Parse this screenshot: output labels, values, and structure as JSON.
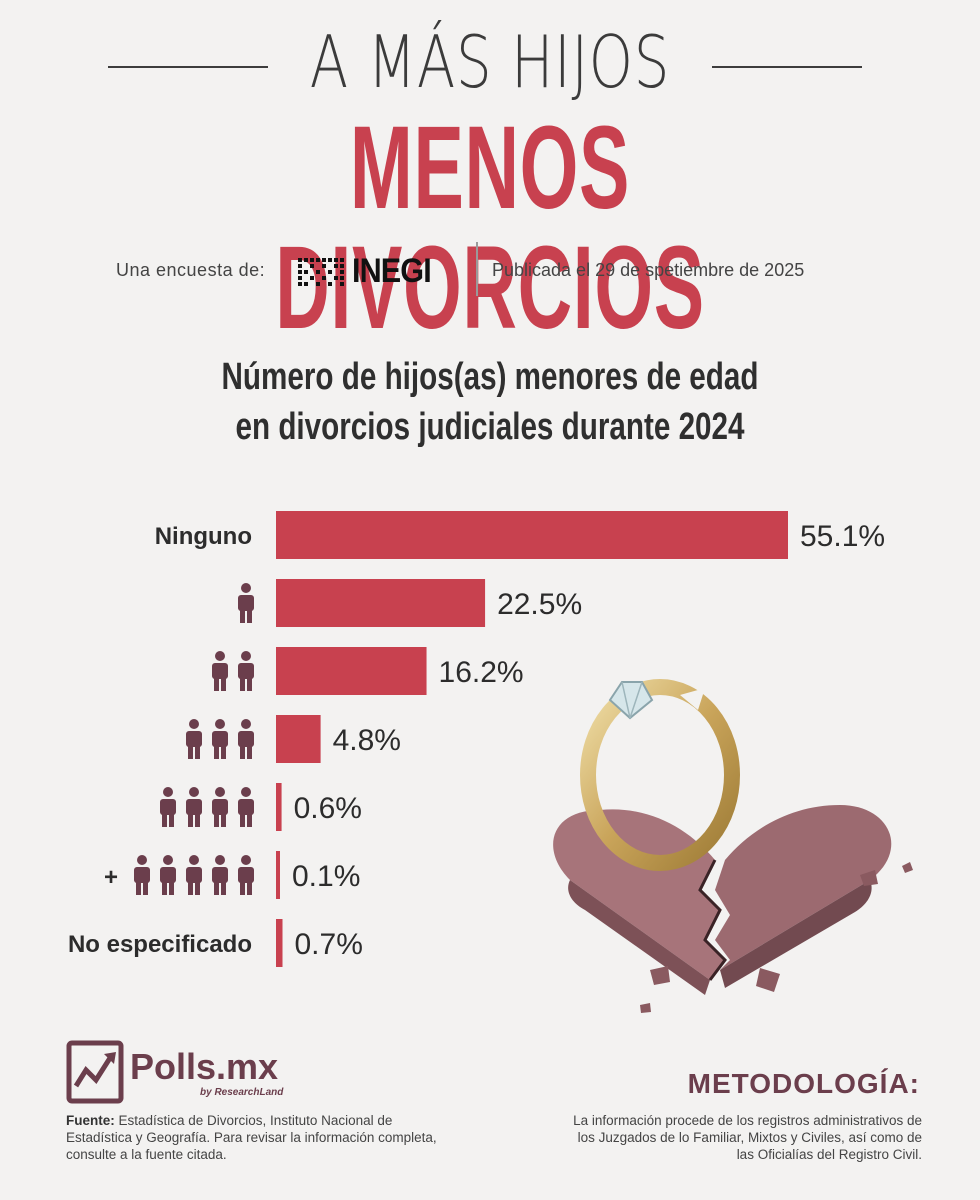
{
  "header": {
    "title_line1": "A MÁS HIJOS",
    "title_line2": "MENOS DIVORCIOS",
    "byline_label": "Una encuesta de:",
    "byline_org": "INEGI",
    "published": "Publicada el 29 de spetiembre de 2025"
  },
  "chart_data": {
    "type": "bar",
    "orientation": "horizontal",
    "title": "Número de hijos(as) menores de edad en divorcios judiciales durante 2024",
    "title_lines": [
      "Número de hijos(as) menores de edad",
      "en divorcios judiciales durante 2024"
    ],
    "categories": [
      "Ninguno",
      "1",
      "2",
      "3",
      "4",
      "5+",
      "No especificado"
    ],
    "category_labels": [
      "Ninguno",
      "",
      "",
      "",
      "",
      "",
      "No especificado"
    ],
    "icon_counts": [
      0,
      1,
      2,
      3,
      4,
      5,
      0
    ],
    "plus_signs": [
      "",
      "",
      "",
      "",
      "",
      "+",
      ""
    ],
    "values": [
      55.1,
      22.5,
      16.2,
      4.8,
      0.6,
      0.1,
      0.7
    ],
    "value_labels": [
      "55.1%",
      "22.5%",
      "16.2%",
      "4.8%",
      "0.6%",
      "0.1%",
      "0.7%"
    ],
    "xlim": [
      0,
      55.1
    ],
    "bar_color": "#c8414f",
    "icon_color": "#6b3e4c",
    "grid": false
  },
  "footer": {
    "logo_name": "Polls.mx",
    "logo_sub": "by ResearchLand",
    "source_label": "Fuente:",
    "source_text": " Estadística de Divorcios, Instituto Nacional de Estadística y Geografía. Para revisar la información completa, consulte a la fuente citada.",
    "method_title": "METODOLOGÍA:",
    "method_text": "La información procede de los registros administrativos de los Juzgados de lo Familiar, Mixtos y Civiles, así como de las Oficialías del Registro Civil."
  },
  "colors": {
    "accent": "#c8414f",
    "brand": "#6b3e4c",
    "background": "#f3f2f1"
  }
}
